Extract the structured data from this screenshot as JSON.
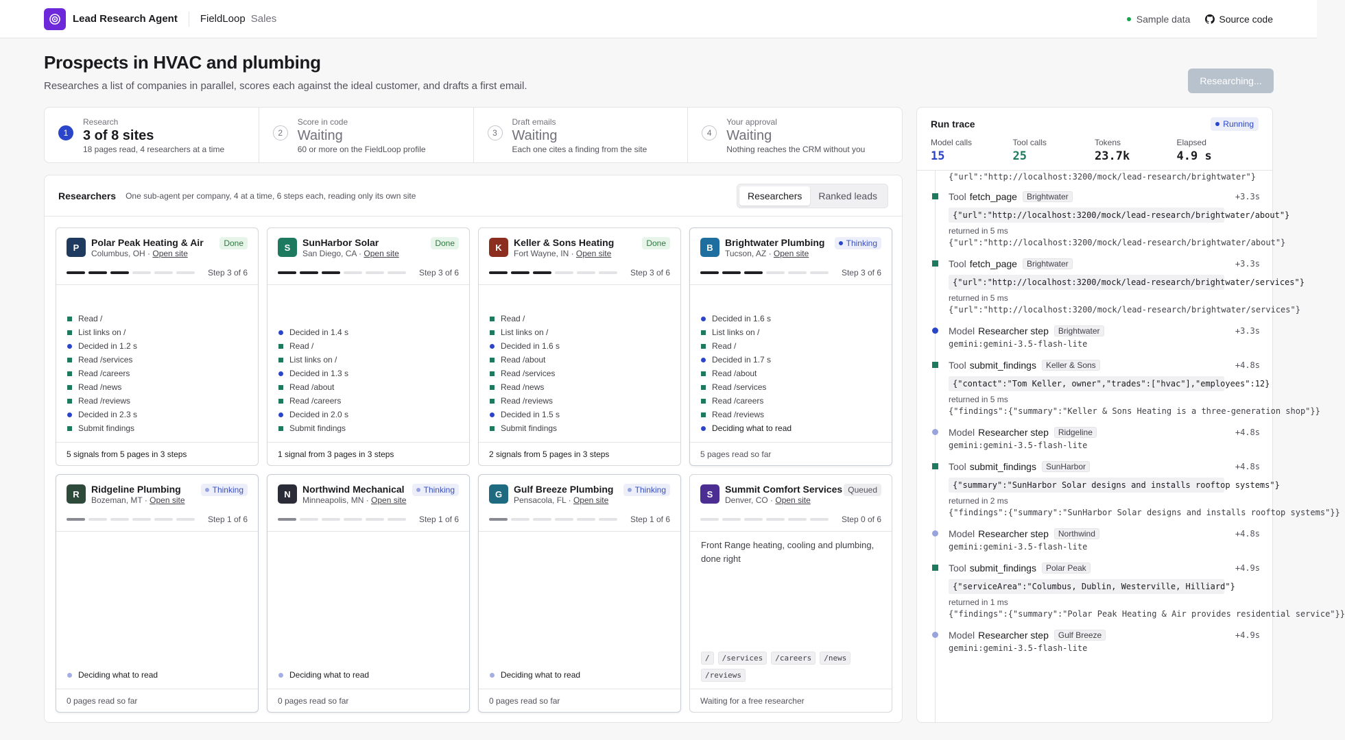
{
  "topbar": {
    "brand": "Lead Research Agent",
    "company": "FieldLoop",
    "section": "Sales",
    "sample_label": "Sample data",
    "source_label": "Source code"
  },
  "header": {
    "title": "Prospects in HVAC and plumbing",
    "subtitle": "Researches a list of companies in parallel, scores each against the ideal customer, and drafts a first email.",
    "button_label": "Researching..."
  },
  "steps": [
    {
      "num": "1",
      "label": "Research",
      "value": "3 of 8 sites",
      "note": "18 pages read, 4 researchers at a time",
      "active": true
    },
    {
      "num": "2",
      "label": "Score in code",
      "value": "Waiting",
      "note": "60 or more on the FieldLoop profile",
      "active": false
    },
    {
      "num": "3",
      "label": "Draft emails",
      "value": "Waiting",
      "note": "Each one cites a finding from the site",
      "active": false
    },
    {
      "num": "4",
      "label": "Your approval",
      "value": "Waiting",
      "note": "Nothing reaches the CRM without you",
      "active": false
    }
  ],
  "researchers": {
    "title": "Researchers",
    "subtitle": "One sub-agent per company, 4 at a time, 6 steps each, reading only its own site",
    "tab_researchers": "Researchers",
    "tab_ranked": "Ranked leads",
    "open_site": "Open site",
    "cards": [
      {
        "initial": "P",
        "color": "#1e3a5f",
        "name": "Polar Peak Heating & Air",
        "location": "Columbus, OH",
        "status": "Done",
        "step": "Step 3 of 6",
        "progress": 3,
        "log": [
          {
            "m": "sq",
            "t": "Read /"
          },
          {
            "m": "sq",
            "t": "List links on /"
          },
          {
            "m": "ci",
            "t": "Decided in 1.2 s"
          },
          {
            "m": "sq",
            "t": "Read /services"
          },
          {
            "m": "sq",
            "t": "Read /careers"
          },
          {
            "m": "sq",
            "t": "Read /news"
          },
          {
            "m": "sq",
            "t": "Read /reviews"
          },
          {
            "m": "ci",
            "t": "Decided in 2.3 s"
          },
          {
            "m": "sq",
            "t": "Submit findings"
          }
        ],
        "footer": "5 signals from 5 pages in 3 steps"
      },
      {
        "initial": "S",
        "color": "#1e7a5e",
        "name": "SunHarbor Solar",
        "location": "San Diego, CA",
        "status": "Done",
        "step": "Step 3 of 6",
        "progress": 3,
        "log": [
          {
            "m": "ci",
            "t": "Decided in 1.4 s"
          },
          {
            "m": "sq",
            "t": "Read /"
          },
          {
            "m": "sq",
            "t": "List links on /"
          },
          {
            "m": "ci",
            "t": "Decided in 1.3 s"
          },
          {
            "m": "sq",
            "t": "Read /about"
          },
          {
            "m": "sq",
            "t": "Read /careers"
          },
          {
            "m": "ci",
            "t": "Decided in 2.0 s"
          },
          {
            "m": "sq",
            "t": "Submit findings"
          }
        ],
        "footer": "1 signal from 3 pages in 3 steps"
      },
      {
        "initial": "K",
        "color": "#8b2e1f",
        "name": "Keller & Sons Heating",
        "location": "Fort Wayne, IN",
        "status": "Done",
        "step": "Step 3 of 6",
        "progress": 3,
        "log": [
          {
            "m": "sq",
            "t": "Read /"
          },
          {
            "m": "sq",
            "t": "List links on /"
          },
          {
            "m": "ci",
            "t": "Decided in 1.6 s"
          },
          {
            "m": "sq",
            "t": "Read /about"
          },
          {
            "m": "sq",
            "t": "Read /services"
          },
          {
            "m": "sq",
            "t": "Read /news"
          },
          {
            "m": "sq",
            "t": "Read /reviews"
          },
          {
            "m": "ci",
            "t": "Decided in 1.5 s"
          },
          {
            "m": "sq",
            "t": "Submit findings"
          }
        ],
        "footer": "2 signals from 5 pages in 3 steps"
      },
      {
        "initial": "B",
        "color": "#1e6fa0",
        "name": "Brightwater Plumbing",
        "location": "Tucson, AZ",
        "status": "Thinking",
        "step": "Step 3 of 6",
        "progress": 3,
        "log": [
          {
            "m": "ci",
            "t": "Decided in 1.6 s"
          },
          {
            "m": "sq",
            "t": "List links on /"
          },
          {
            "m": "sq",
            "t": "Read /"
          },
          {
            "m": "ci",
            "t": "Decided in 1.7 s"
          },
          {
            "m": "sq",
            "t": "Read /about"
          },
          {
            "m": "sq",
            "t": "Read /services"
          },
          {
            "m": "sq",
            "t": "Read /careers"
          },
          {
            "m": "sq",
            "t": "Read /reviews"
          },
          {
            "m": "ci",
            "t": "Deciding what to read",
            "cur": true
          }
        ],
        "footer": "5 pages read so far"
      },
      {
        "initial": "R",
        "color": "#2d4a3a",
        "name": "Ridgeline Plumbing",
        "location": "Bozeman, MT",
        "status": "Thinking",
        "step": "Step 1 of 6",
        "progress": 1,
        "log": [
          {
            "m": "cil",
            "t": "Deciding what to read",
            "cur": true
          }
        ],
        "footer": "0 pages read so far"
      },
      {
        "initial": "N",
        "color": "#2a2d38",
        "name": "Northwind Mechanical",
        "location": "Minneapolis, MN",
        "status": "Thinking",
        "step": "Step 1 of 6",
        "progress": 1,
        "log": [
          {
            "m": "cil",
            "t": "Deciding what to read",
            "cur": true
          }
        ],
        "footer": "0 pages read so far"
      },
      {
        "initial": "G",
        "color": "#1e6a80",
        "name": "Gulf Breeze Plumbing",
        "location": "Pensacola, FL",
        "status": "Thinking",
        "step": "Step 1 of 6",
        "progress": 1,
        "log": [
          {
            "m": "cil",
            "t": "Deciding what to read",
            "cur": true
          }
        ],
        "footer": "0 pages read so far"
      },
      {
        "initial": "S",
        "color": "#4c2d91",
        "name": "Summit Comfort Services",
        "location": "Denver, CO",
        "status": "Queued",
        "step": "Step 0 of 6",
        "progress": 0,
        "description": "Front Range heating, cooling and plumbing, done right",
        "chips": [
          "/",
          "/services",
          "/careers",
          "/news",
          "/reviews"
        ],
        "footer": "Waiting for a free researcher"
      }
    ]
  },
  "trace": {
    "title": "Run trace",
    "status": "Running",
    "stats": [
      {
        "label": "Model calls",
        "value": "15",
        "tone": "blue"
      },
      {
        "label": "Tool calls",
        "value": "25",
        "tone": "green"
      },
      {
        "label": "Tokens",
        "value": "23.7k",
        "tone": ""
      },
      {
        "label": "Elapsed",
        "value": "4.9 s",
        "tone": ""
      }
    ],
    "lead_line": "{\"url\":\"http://localhost:3200/mock/lead-research/brightwater\"}",
    "events": [
      {
        "kind": "Tool",
        "name": "fetch_page",
        "tag": "Brightwater",
        "time": "+3.3s",
        "marker": "sq",
        "args": "{\"url\":\"http://localhost:3200/mock/lead-research/brightwater/about\"}",
        "ret": "returned in 5 ms",
        "out": "{\"url\":\"http://localhost:3200/mock/lead-research/brightwater/about\"}"
      },
      {
        "kind": "Tool",
        "name": "fetch_page",
        "tag": "Brightwater",
        "time": "+3.3s",
        "marker": "sq",
        "args": "{\"url\":\"http://localhost:3200/mock/lead-research/brightwater/services\"}",
        "ret": "returned in 5 ms",
        "out": "{\"url\":\"http://localhost:3200/mock/lead-research/brightwater/services\"}"
      },
      {
        "kind": "Model",
        "name": "Researcher step",
        "tag": "Brightwater",
        "time": "+3.3s",
        "marker": "ci",
        "model": "gemini:gemini-3.5-flash-lite"
      },
      {
        "kind": "Tool",
        "name": "submit_findings",
        "tag": "Keller & Sons",
        "time": "+4.8s",
        "marker": "sq",
        "args": "{\"contact\":\"Tom Keller, owner\",\"trades\":[\"hvac\"],\"employees\":12}",
        "ret": "returned in 5 ms",
        "out": "{\"findings\":{\"summary\":\"Keller & Sons Heating is a three-generation shop\"}}"
      },
      {
        "kind": "Model",
        "name": "Researcher step",
        "tag": "Ridgeline",
        "time": "+4.8s",
        "marker": "cil",
        "model": "gemini:gemini-3.5-flash-lite"
      },
      {
        "kind": "Tool",
        "name": "submit_findings",
        "tag": "SunHarbor",
        "time": "+4.8s",
        "marker": "sq",
        "args": "{\"summary\":\"SunHarbor Solar designs and installs rooftop systems\"}",
        "ret": "returned in 2 ms",
        "out": "{\"findings\":{\"summary\":\"SunHarbor Solar designs and installs rooftop systems\"}}"
      },
      {
        "kind": "Model",
        "name": "Researcher step",
        "tag": "Northwind",
        "time": "+4.8s",
        "marker": "cil",
        "model": "gemini:gemini-3.5-flash-lite"
      },
      {
        "kind": "Tool",
        "name": "submit_findings",
        "tag": "Polar Peak",
        "time": "+4.9s",
        "marker": "sq",
        "args": "{\"serviceArea\":\"Columbus, Dublin, Westerville, Hilliard\"}",
        "ret": "returned in 1 ms",
        "out": "{\"findings\":{\"summary\":\"Polar Peak Heating & Air provides residential service\"}}"
      },
      {
        "kind": "Model",
        "name": "Researcher step",
        "tag": "Gulf Breeze",
        "time": "+4.9s",
        "marker": "cil",
        "model": "gemini:gemini-3.5-flash-lite"
      }
    ]
  }
}
